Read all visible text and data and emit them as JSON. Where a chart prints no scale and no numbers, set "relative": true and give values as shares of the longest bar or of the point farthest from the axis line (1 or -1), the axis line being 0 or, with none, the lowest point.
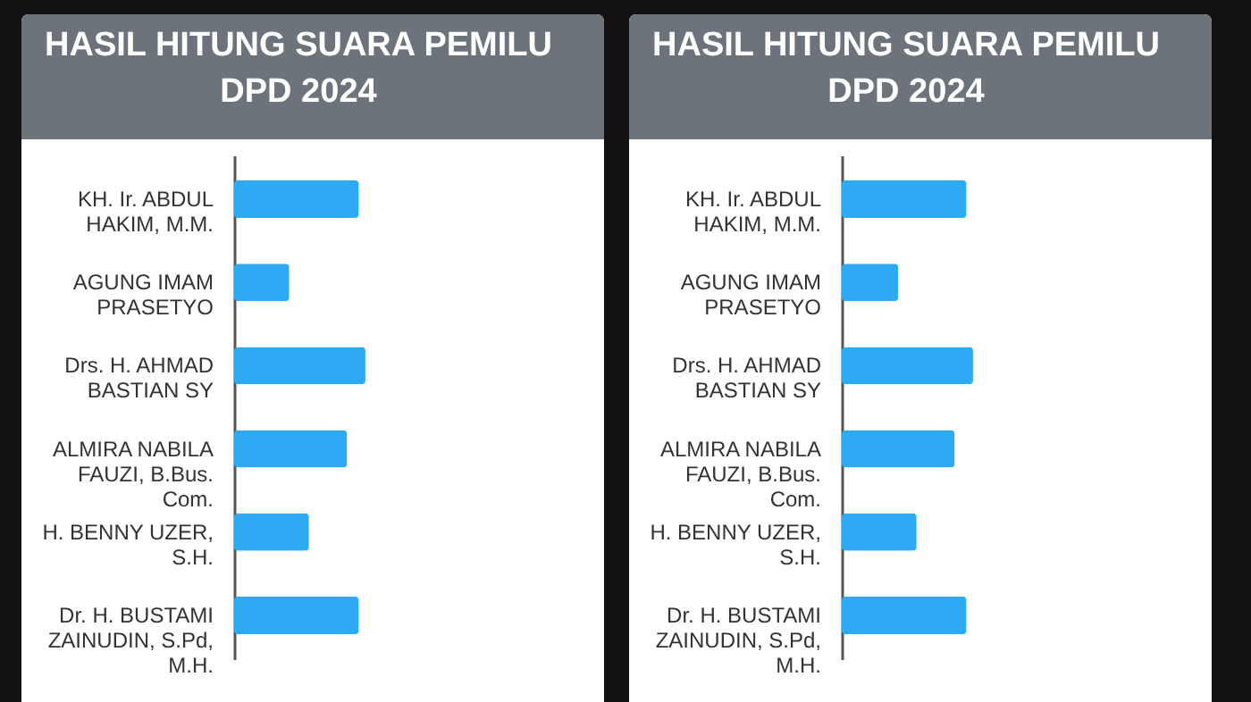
{
  "chart_data": [
    {
      "type": "bar",
      "orientation": "horizontal",
      "relative": true,
      "title": "HASIL HITUNG SUARA PEMILU DPD 2024",
      "categories": [
        "KH. Ir. ABDUL HAKIM, M.M.",
        "AGUNG IMAM PRASETYO",
        "Drs. H. AHMAD BASTIAN SY",
        "ALMIRA NABILA FAUZI, B.Bus. Com.",
        "H. BENNY UZER, S.H.",
        "Dr. H. BUSTAMI ZAINUDIN, S.Pd, M.H."
      ],
      "values": [
        0.95,
        0.42,
        1,
        0.86,
        0.57,
        0.95
      ],
      "color": "#2eaaf5"
    },
    {
      "type": "bar",
      "orientation": "horizontal",
      "relative": true,
      "title": "HASIL HITUNG SUARA PEMILU DPD 2024",
      "categories": [
        "KH. Ir. ABDUL HAKIM, M.M.",
        "AGUNG IMAM PRASETYO",
        "Drs. H. AHMAD BASTIAN SY",
        "ALMIRA NABILA FAUZI, B.Bus. Com.",
        "H. BENNY UZER, S.H.",
        "Dr. H. BUSTAMI ZAINUDIN, S.Pd, M.H."
      ],
      "values": [
        0.95,
        0.43,
        1,
        0.86,
        0.57,
        0.95
      ],
      "color": "#2eaaf5"
    }
  ]
}
